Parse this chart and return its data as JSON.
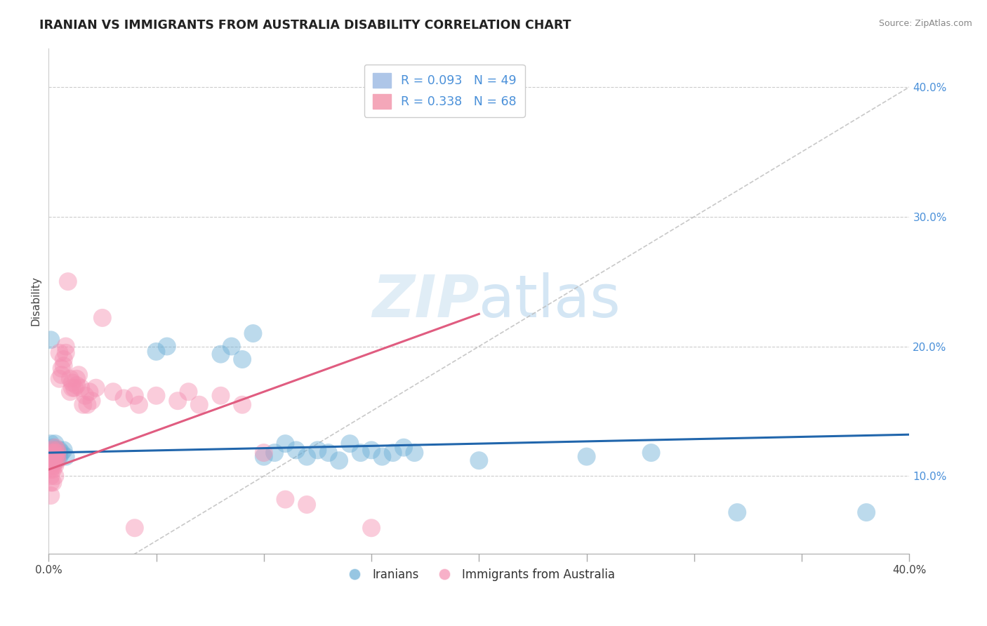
{
  "title": "IRANIAN VS IMMIGRANTS FROM AUSTRALIA DISABILITY CORRELATION CHART",
  "source": "Source: ZipAtlas.com",
  "ylabel": "Disability",
  "y_ticks": [
    0.1,
    0.2,
    0.3,
    0.4
  ],
  "y_tick_labels": [
    "10.0%",
    "20.0%",
    "30.0%",
    "40.0%"
  ],
  "x_range": [
    0.0,
    0.4
  ],
  "y_range": [
    0.04,
    0.43
  ],
  "bottom_legend": [
    "Iranians",
    "Immigrants from Australia"
  ],
  "iranians_color": "#6baed6",
  "australia_color": "#f48fb1",
  "trend_iran_color": "#2166ac",
  "trend_aus_color": "#e05c80",
  "iran_trend_x0": 0.0,
  "iran_trend_y0": 0.118,
  "iran_trend_x1": 0.4,
  "iran_trend_y1": 0.132,
  "aus_trend_x0": 0.0,
  "aus_trend_y0": 0.105,
  "aus_trend_x1": 0.2,
  "aus_trend_y1": 0.225,
  "iranians": [
    [
      0.001,
      0.118
    ],
    [
      0.001,
      0.115
    ],
    [
      0.001,
      0.125
    ],
    [
      0.001,
      0.112
    ],
    [
      0.002,
      0.12
    ],
    [
      0.002,
      0.118
    ],
    [
      0.002,
      0.115
    ],
    [
      0.002,
      0.122
    ],
    [
      0.003,
      0.118
    ],
    [
      0.003,
      0.115
    ],
    [
      0.003,
      0.112
    ],
    [
      0.003,
      0.125
    ],
    [
      0.004,
      0.12
    ],
    [
      0.004,
      0.116
    ],
    [
      0.004,
      0.118
    ],
    [
      0.004,
      0.113
    ],
    [
      0.005,
      0.115
    ],
    [
      0.005,
      0.12
    ],
    [
      0.005,
      0.118
    ],
    [
      0.006,
      0.118
    ],
    [
      0.007,
      0.12
    ],
    [
      0.008,
      0.115
    ],
    [
      0.001,
      0.205
    ],
    [
      0.05,
      0.196
    ],
    [
      0.055,
      0.2
    ],
    [
      0.08,
      0.194
    ],
    [
      0.085,
      0.2
    ],
    [
      0.09,
      0.19
    ],
    [
      0.095,
      0.21
    ],
    [
      0.1,
      0.115
    ],
    [
      0.105,
      0.118
    ],
    [
      0.11,
      0.125
    ],
    [
      0.115,
      0.12
    ],
    [
      0.12,
      0.115
    ],
    [
      0.125,
      0.12
    ],
    [
      0.13,
      0.118
    ],
    [
      0.135,
      0.112
    ],
    [
      0.14,
      0.125
    ],
    [
      0.145,
      0.118
    ],
    [
      0.15,
      0.12
    ],
    [
      0.155,
      0.115
    ],
    [
      0.16,
      0.118
    ],
    [
      0.165,
      0.122
    ],
    [
      0.17,
      0.118
    ],
    [
      0.2,
      0.112
    ],
    [
      0.25,
      0.115
    ],
    [
      0.28,
      0.118
    ],
    [
      0.32,
      0.072
    ],
    [
      0.38,
      0.072
    ]
  ],
  "australia": [
    [
      0.001,
      0.118
    ],
    [
      0.001,
      0.115
    ],
    [
      0.001,
      0.112
    ],
    [
      0.001,
      0.108
    ],
    [
      0.001,
      0.105
    ],
    [
      0.001,
      0.1
    ],
    [
      0.001,
      0.095
    ],
    [
      0.001,
      0.085
    ],
    [
      0.002,
      0.12
    ],
    [
      0.002,
      0.118
    ],
    [
      0.002,
      0.115
    ],
    [
      0.002,
      0.11
    ],
    [
      0.002,
      0.108
    ],
    [
      0.002,
      0.105
    ],
    [
      0.002,
      0.095
    ],
    [
      0.003,
      0.122
    ],
    [
      0.003,
      0.118
    ],
    [
      0.003,
      0.115
    ],
    [
      0.003,
      0.112
    ],
    [
      0.003,
      0.108
    ],
    [
      0.003,
      0.1
    ],
    [
      0.004,
      0.12
    ],
    [
      0.004,
      0.118
    ],
    [
      0.004,
      0.115
    ],
    [
      0.004,
      0.112
    ],
    [
      0.005,
      0.175
    ],
    [
      0.005,
      0.195
    ],
    [
      0.006,
      0.178
    ],
    [
      0.006,
      0.183
    ],
    [
      0.007,
      0.19
    ],
    [
      0.007,
      0.185
    ],
    [
      0.008,
      0.2
    ],
    [
      0.008,
      0.195
    ],
    [
      0.009,
      0.25
    ],
    [
      0.01,
      0.165
    ],
    [
      0.01,
      0.175
    ],
    [
      0.011,
      0.168
    ],
    [
      0.011,
      0.172
    ],
    [
      0.012,
      0.168
    ],
    [
      0.013,
      0.17
    ],
    [
      0.013,
      0.175
    ],
    [
      0.014,
      0.178
    ],
    [
      0.015,
      0.168
    ],
    [
      0.016,
      0.155
    ],
    [
      0.017,
      0.162
    ],
    [
      0.018,
      0.155
    ],
    [
      0.019,
      0.165
    ],
    [
      0.02,
      0.158
    ],
    [
      0.022,
      0.168
    ],
    [
      0.025,
      0.222
    ],
    [
      0.03,
      0.165
    ],
    [
      0.035,
      0.16
    ],
    [
      0.04,
      0.162
    ],
    [
      0.042,
      0.155
    ],
    [
      0.05,
      0.162
    ],
    [
      0.06,
      0.158
    ],
    [
      0.065,
      0.165
    ],
    [
      0.07,
      0.155
    ],
    [
      0.08,
      0.162
    ],
    [
      0.09,
      0.155
    ],
    [
      0.1,
      0.118
    ],
    [
      0.11,
      0.082
    ],
    [
      0.12,
      0.078
    ],
    [
      0.04,
      0.06
    ],
    [
      0.15,
      0.06
    ]
  ]
}
